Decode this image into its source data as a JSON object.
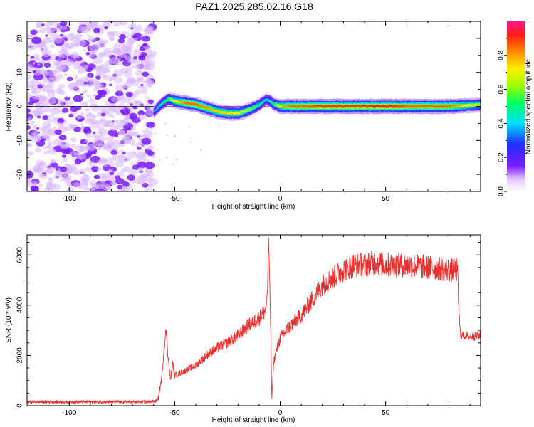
{
  "title": "PAZ1.2025.285.02.16.G18",
  "colors": {
    "snr_line": "#e8302f",
    "ridge_red": "#ff2a2a",
    "noise_purple": "#7a1cff",
    "noise_light": "#d9b8ff",
    "zero_line": "#000000"
  },
  "chart_data": [
    {
      "type": "heatmap",
      "name": "spectrogram",
      "xlabel": "Height of straight line (km)",
      "ylabel": "Frequency (Hz)",
      "xlim": [
        -120,
        95
      ],
      "ylim": [
        -25,
        25
      ],
      "xticks": [
        -100,
        -50,
        0,
        50
      ],
      "xtick_labels": [
        "-100",
        "-50",
        "0",
        "50"
      ],
      "yticks": [
        -20,
        -10,
        0,
        10,
        20
      ],
      "ytick_labels": [
        "-20",
        "-10",
        "0",
        "10",
        "20"
      ],
      "noise_region_x": [
        -120,
        -60
      ],
      "ridge": {
        "x": [
          -60,
          -57,
          -53,
          -50,
          -45,
          -40,
          -35,
          -30,
          -25,
          -20,
          -15,
          -10,
          -7,
          -5,
          -3,
          0,
          5,
          10,
          20,
          30,
          40,
          50,
          60,
          70,
          80,
          95
        ],
        "freq": [
          -1.5,
          0.5,
          2.2,
          1.5,
          1.0,
          0.5,
          -0.5,
          -1.5,
          -2.0,
          -2.0,
          -1.0,
          0.5,
          2.0,
          1.5,
          0.5,
          0.0,
          0.0,
          0.0,
          0.0,
          0.0,
          0.0,
          0.0,
          0.0,
          0.0,
          0.0,
          0.5
        ],
        "amplitude": [
          0.35,
          0.45,
          0.55,
          0.7,
          0.85,
          0.85,
          0.8,
          0.75,
          0.75,
          0.7,
          0.6,
          0.5,
          0.4,
          0.45,
          0.55,
          0.75,
          0.85,
          0.85,
          0.9,
          0.9,
          0.9,
          0.95,
          0.85,
          0.85,
          0.85,
          0.6
        ]
      },
      "colorbar": {
        "label": "Normalized spectral amplitude",
        "range": [
          0,
          1
        ],
        "ticks": [
          0.0,
          0.2,
          0.4,
          0.6,
          0.8
        ],
        "tick_labels": [
          "0.0",
          "0.2",
          "0.4",
          "0.6",
          "0.8"
        ]
      }
    },
    {
      "type": "line",
      "name": "snr",
      "xlabel": "Height of straight line (km)",
      "ylabel": "SNR (10 * v/v)",
      "xlim": [
        -120,
        95
      ],
      "ylim": [
        0,
        6800
      ],
      "xticks": [
        -100,
        -50,
        0,
        50
      ],
      "xtick_labels": [
        "-100",
        "-50",
        "0",
        "50"
      ],
      "yticks": [
        0,
        2000,
        4000,
        6000
      ],
      "ytick_labels": [
        "0",
        "2000",
        "4000",
        "6000"
      ],
      "series": [
        {
          "name": "SNR",
          "x": [
            -120,
            -100,
            -80,
            -62,
            -58,
            -56,
            -55,
            -54,
            -53,
            -52,
            -51,
            -50,
            -45,
            -40,
            -35,
            -30,
            -25,
            -20,
            -15,
            -10,
            -7,
            -6,
            -5.5,
            -5,
            -4.5,
            -4,
            -3,
            0,
            5,
            10,
            15,
            20,
            25,
            30,
            35,
            40,
            45,
            50,
            60,
            70,
            80,
            84,
            85,
            85.5,
            86,
            90,
            95
          ],
          "y": [
            150,
            150,
            150,
            150,
            200,
            1200,
            2400,
            3000,
            1800,
            1000,
            1700,
            1200,
            1400,
            1600,
            2000,
            2300,
            2500,
            2800,
            3200,
            3500,
            3800,
            4600,
            6800,
            5000,
            3000,
            300,
            1800,
            2700,
            3200,
            3600,
            4200,
            4800,
            5100,
            5400,
            5600,
            5600,
            5700,
            5600,
            5600,
            5500,
            5400,
            5400,
            3300,
            2800,
            2800,
            2750,
            2800
          ]
        }
      ]
    }
  ]
}
